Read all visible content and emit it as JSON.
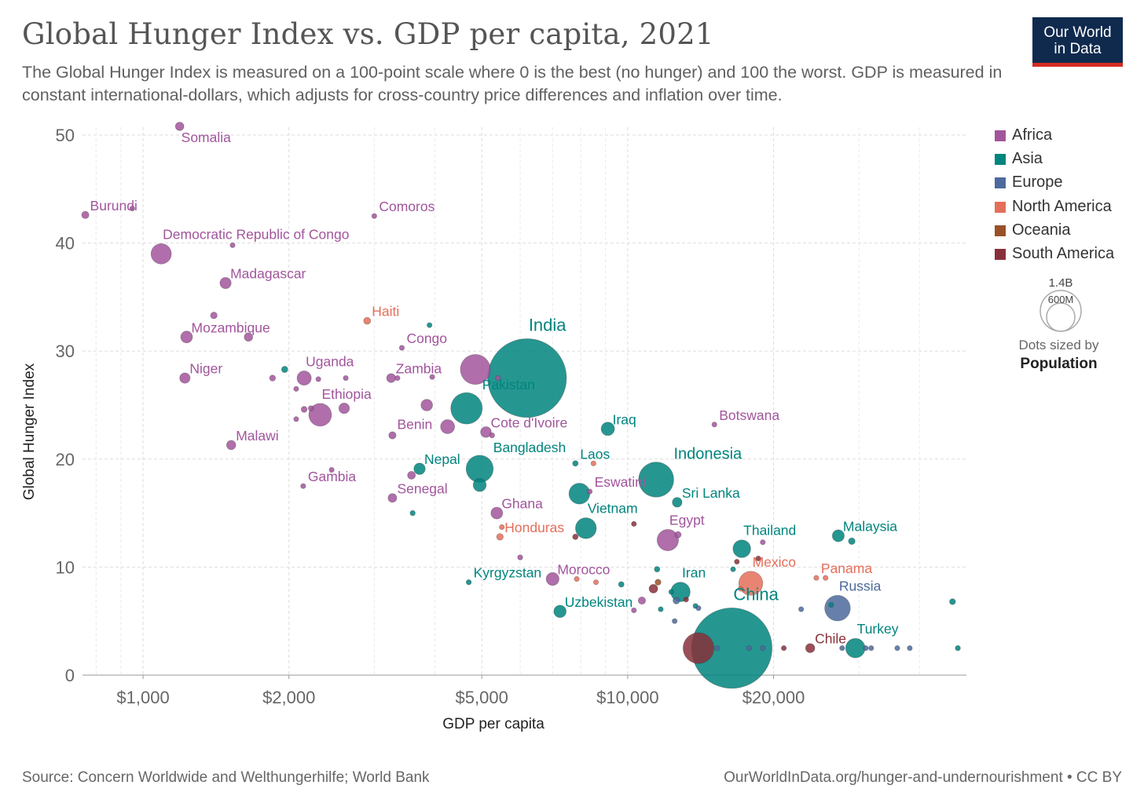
{
  "header": {
    "title": "Global Hunger Index vs. GDP per capita, 2021",
    "subtitle": "The Global Hunger Index is measured on a 100-point scale where 0 is the best (no hunger) and 100 the worst. GDP is measured in constant international-dollars, which adjusts for cross-country price differences and inflation over time.",
    "logo_line1": "Our World",
    "logo_line2": "in Data"
  },
  "footer": {
    "source": "Source: Concern Worldwide and Welthungerhilfe; World Bank",
    "url": "OurWorldInData.org/hunger-and-undernourishment • CC BY"
  },
  "size_legend": {
    "big_label": "1.4B",
    "small_label": "600M",
    "caption_line1": "Dots sized by",
    "caption_line2": "Population"
  },
  "colors": {
    "Africa": "#a2559c",
    "Asia": "#00847e",
    "Europe": "#4c6a9c",
    "North America": "#e56e5a",
    "Oceania": "#9a5129",
    "South America": "#883039"
  },
  "chart_data": {
    "type": "scatter",
    "xlabel": "GDP per capita",
    "ylabel": "Global Hunger Index",
    "x_scale": "log",
    "xlim": [
      750,
      50000
    ],
    "ylim": [
      0,
      52
    ],
    "grid": true,
    "legend_position": "right",
    "x_ticks": [
      {
        "value": 1000,
        "label": "$1,000"
      },
      {
        "value": 2000,
        "label": "$2,000"
      },
      {
        "value": 5000,
        "label": "$5,000"
      },
      {
        "value": 10000,
        "label": "$10,000"
      },
      {
        "value": 20000,
        "label": "$20,000"
      }
    ],
    "y_ticks": [
      {
        "value": 0,
        "label": "0"
      },
      {
        "value": 10,
        "label": "10"
      },
      {
        "value": 20,
        "label": "20"
      },
      {
        "value": 30,
        "label": "30"
      },
      {
        "value": 40,
        "label": "40"
      },
      {
        "value": 50,
        "label": "50"
      }
    ],
    "series": [
      {
        "name": "Africa",
        "points": [
          {
            "country": "Somalia",
            "label": "Somalia",
            "x": 1190,
            "y": 50.8,
            "pop": 16
          },
          {
            "country": "Burundi",
            "label": "Burundi",
            "x": 760,
            "y": 42.6,
            "pop": 12
          },
          {
            "country": "",
            "label": "",
            "x": 950,
            "y": 43.2,
            "pop": 3
          },
          {
            "country": "Comoros",
            "label": "Comoros",
            "x": 3000,
            "y": 42.5,
            "pop": 1
          },
          {
            "country": "Democratic Republic of Congo",
            "label": "Democratic Republic of Congo",
            "x": 1090,
            "y": 39.0,
            "pop": 92
          },
          {
            "country": "",
            "label": "",
            "x": 1530,
            "y": 39.8,
            "pop": 2
          },
          {
            "country": "Madagascar",
            "label": "Madagascar",
            "x": 1480,
            "y": 36.3,
            "pop": 28
          },
          {
            "country": "",
            "label": "",
            "x": 1400,
            "y": 33.3,
            "pop": 10
          },
          {
            "country": "Mozambique",
            "label": "Mozambique",
            "x": 1230,
            "y": 31.3,
            "pop": 31
          },
          {
            "country": "",
            "label": "",
            "x": 1650,
            "y": 31.3,
            "pop": 16
          },
          {
            "country": "Congo",
            "label": "Congo",
            "x": 3420,
            "y": 30.3,
            "pop": 5
          },
          {
            "country": "Niger",
            "label": "Niger",
            "x": 1220,
            "y": 27.5,
            "pop": 24
          },
          {
            "country": "",
            "label": "",
            "x": 1850,
            "y": 27.5,
            "pop": 8
          },
          {
            "country": "Uganda",
            "label": "Uganda",
            "x": 2150,
            "y": 27.5,
            "pop": 45
          },
          {
            "country": "",
            "label": "",
            "x": 2300,
            "y": 27.4,
            "pop": 5
          },
          {
            "country": "",
            "label": "",
            "x": 2620,
            "y": 27.5,
            "pop": 5
          },
          {
            "country": "Zambia",
            "label": "Zambia",
            "x": 3250,
            "y": 27.5,
            "pop": 18
          },
          {
            "country": "",
            "label": "",
            "x": 3350,
            "y": 27.5,
            "pop": 5
          },
          {
            "country": "",
            "label": "",
            "x": 3950,
            "y": 27.6,
            "pop": 4
          },
          {
            "country": "",
            "label": "",
            "x": 4850,
            "y": 28.3,
            "pop": 200
          },
          {
            "country": "",
            "label": "",
            "x": 5400,
            "y": 27.5,
            "pop": 3
          },
          {
            "country": "",
            "label": "",
            "x": 2070,
            "y": 26.5,
            "pop": 5
          },
          {
            "country": "Ethiopia",
            "label": "Ethiopia",
            "x": 2320,
            "y": 24.1,
            "pop": 115
          },
          {
            "country": "",
            "label": "",
            "x": 2150,
            "y": 24.6,
            "pop": 8
          },
          {
            "country": "",
            "label": "",
            "x": 2220,
            "y": 24.7,
            "pop": 6
          },
          {
            "country": "",
            "label": "",
            "x": 2600,
            "y": 24.7,
            "pop": 25
          },
          {
            "country": "",
            "label": "",
            "x": 2070,
            "y": 23.7,
            "pop": 5
          },
          {
            "country": "",
            "label": "",
            "x": 3850,
            "y": 25.0,
            "pop": 30
          },
          {
            "country": "Benin",
            "label": "Benin",
            "x": 3270,
            "y": 22.2,
            "pop": 12
          },
          {
            "country": "",
            "label": "",
            "x": 4250,
            "y": 23.0,
            "pop": 44
          },
          {
            "country": "Cote d'Ivoire",
            "label": "Cote d'Ivoire",
            "x": 5100,
            "y": 22.5,
            "pop": 26
          },
          {
            "country": "",
            "label": "",
            "x": 5250,
            "y": 22.2,
            "pop": 6
          },
          {
            "country": "Botswana",
            "label": "Botswana",
            "x": 15100,
            "y": 23.2,
            "pop": 2
          },
          {
            "country": "Malawi",
            "label": "Malawi",
            "x": 1520,
            "y": 21.3,
            "pop": 19
          },
          {
            "country": "Gambia",
            "label": "Gambia",
            "x": 2140,
            "y": 17.5,
            "pop": 2
          },
          {
            "country": "",
            "label": "",
            "x": 2450,
            "y": 19.0,
            "pop": 2
          },
          {
            "country": "",
            "label": "",
            "x": 3580,
            "y": 18.5,
            "pop": 14
          },
          {
            "country": "Senegal",
            "label": "Senegal",
            "x": 3270,
            "y": 16.4,
            "pop": 17
          },
          {
            "country": "Eswatini",
            "label": "Eswatini",
            "x": 8350,
            "y": 17.0,
            "pop": 1
          },
          {
            "country": "Ghana",
            "label": "Ghana",
            "x": 5370,
            "y": 15.0,
            "pop": 31
          },
          {
            "country": "",
            "label": "",
            "x": 6000,
            "y": 10.9,
            "pop": 6
          },
          {
            "country": "Egypt",
            "label": "Egypt",
            "x": 12100,
            "y": 12.5,
            "pop": 102
          },
          {
            "country": "",
            "label": "",
            "x": 12700,
            "y": 13.0,
            "pop": 9
          },
          {
            "country": "",
            "label": "",
            "x": 19000,
            "y": 12.3,
            "pop": 5
          },
          {
            "country": "Morocco",
            "label": "Morocco",
            "x": 7000,
            "y": 8.9,
            "pop": 37
          },
          {
            "country": "",
            "label": "",
            "x": 10700,
            "y": 6.9,
            "pop": 12
          },
          {
            "country": "",
            "label": "",
            "x": 10300,
            "y": 6.0,
            "pop": 5
          }
        ]
      },
      {
        "name": "Asia",
        "points": [
          {
            "country": "",
            "label": "",
            "x": 3900,
            "y": 32.4,
            "pop": 4
          },
          {
            "country": "India",
            "label": "India",
            "x": 6200,
            "y": 27.5,
            "pop": 1380
          },
          {
            "country": "Pakistan",
            "label": "Pakistan",
            "x": 4650,
            "y": 24.7,
            "pop": 220
          },
          {
            "country": "",
            "label": "",
            "x": 1960,
            "y": 28.3,
            "pop": 9
          },
          {
            "country": "Iraq",
            "label": "Iraq",
            "x": 9100,
            "y": 22.8,
            "pop": 40
          },
          {
            "country": "Nepal",
            "label": "Nepal",
            "x": 3720,
            "y": 19.1,
            "pop": 29
          },
          {
            "country": "Bangladesh",
            "label": "Bangladesh",
            "x": 4950,
            "y": 19.1,
            "pop": 164
          },
          {
            "country": "",
            "label": "",
            "x": 4950,
            "y": 17.6,
            "pop": 38
          },
          {
            "country": "",
            "label": "",
            "x": 3600,
            "y": 15.0,
            "pop": 6
          },
          {
            "country": "Laos",
            "label": "Laos",
            "x": 7800,
            "y": 19.6,
            "pop": 7
          },
          {
            "country": "Indonesia",
            "label": "Indonesia",
            "x": 11450,
            "y": 18.1,
            "pop": 273
          },
          {
            "country": "",
            "label": "",
            "x": 7950,
            "y": 16.8,
            "pop": 97
          },
          {
            "country": "Sri Lanka",
            "label": "Sri Lanka",
            "x": 12650,
            "y": 16.0,
            "pop": 21
          },
          {
            "country": "Vietnam",
            "label": "Vietnam",
            "x": 8200,
            "y": 13.6,
            "pop": 97
          },
          {
            "country": "Thailand",
            "label": "Thailand",
            "x": 17200,
            "y": 11.7,
            "pop": 70
          },
          {
            "country": "Malaysia",
            "label": "Malaysia",
            "x": 27200,
            "y": 12.9,
            "pop": 32
          },
          {
            "country": "",
            "label": "",
            "x": 29000,
            "y": 12.4,
            "pop": 10
          },
          {
            "country": "Kyrgyzstan",
            "label": "Kyrgyzstan",
            "x": 4700,
            "y": 8.6,
            "pop": 6
          },
          {
            "country": "Uzbekistan",
            "label": "Uzbekistan",
            "x": 7250,
            "y": 5.9,
            "pop": 34
          },
          {
            "country": "Iran",
            "label": "Iran",
            "x": 12850,
            "y": 7.7,
            "pop": 84
          },
          {
            "country": "",
            "label": "",
            "x": 11500,
            "y": 9.8,
            "pop": 7
          },
          {
            "country": "",
            "label": "",
            "x": 9700,
            "y": 8.4,
            "pop": 7
          },
          {
            "country": "",
            "label": "",
            "x": 13800,
            "y": 6.4,
            "pop": 4
          },
          {
            "country": "",
            "label": "",
            "x": 12300,
            "y": 7.7,
            "pop": 4
          },
          {
            "country": "",
            "label": "",
            "x": 16500,
            "y": 9.8,
            "pop": 4
          },
          {
            "country": "",
            "label": "",
            "x": 11700,
            "y": 6.1,
            "pop": 4
          },
          {
            "country": "China",
            "label": "China",
            "x": 16400,
            "y": 2.5,
            "pop": 1440
          },
          {
            "country": "",
            "label": "",
            "x": 26300,
            "y": 6.5,
            "pop": 5
          },
          {
            "country": "Turkey",
            "label": "Turkey",
            "x": 29500,
            "y": 2.5,
            "pop": 84
          },
          {
            "country": "",
            "label": "",
            "x": 46800,
            "y": 6.8,
            "pop": 8
          },
          {
            "country": "",
            "label": "",
            "x": 48000,
            "y": 2.5,
            "pop": 6
          }
        ]
      },
      {
        "name": "Europe",
        "points": [
          {
            "country": "Russia",
            "label": "Russia",
            "x": 27100,
            "y": 6.2,
            "pop": 146
          },
          {
            "country": "",
            "label": "",
            "x": 12600,
            "y": 6.9,
            "pop": 10
          },
          {
            "country": "",
            "label": "",
            "x": 14000,
            "y": 6.2,
            "pop": 4
          },
          {
            "country": "",
            "label": "",
            "x": 12500,
            "y": 5.0,
            "pop": 3
          },
          {
            "country": "",
            "label": "",
            "x": 22800,
            "y": 6.1,
            "pop": 3
          },
          {
            "country": "",
            "label": "",
            "x": 15300,
            "y": 2.5,
            "pop": 4
          },
          {
            "country": "",
            "label": "",
            "x": 17800,
            "y": 2.5,
            "pop": 3
          },
          {
            "country": "",
            "label": "",
            "x": 19000,
            "y": 2.5,
            "pop": 3
          },
          {
            "country": "",
            "label": "",
            "x": 27700,
            "y": 2.5,
            "pop": 3
          },
          {
            "country": "",
            "label": "",
            "x": 31000,
            "y": 2.5,
            "pop": 3
          },
          {
            "country": "",
            "label": "",
            "x": 31800,
            "y": 2.5,
            "pop": 3
          },
          {
            "country": "",
            "label": "",
            "x": 36000,
            "y": 2.5,
            "pop": 3
          },
          {
            "country": "",
            "label": "",
            "x": 38200,
            "y": 2.5,
            "pop": 3
          }
        ]
      },
      {
        "name": "North America",
        "points": [
          {
            "country": "Haiti",
            "label": "Haiti",
            "x": 2900,
            "y": 32.8,
            "pop": 11
          },
          {
            "country": "",
            "label": "",
            "x": 8500,
            "y": 19.6,
            "pop": 5
          },
          {
            "country": "Honduras",
            "label": "Honduras",
            "x": 5450,
            "y": 12.8,
            "pop": 10
          },
          {
            "country": "",
            "label": "",
            "x": 5500,
            "y": 13.7,
            "pop": 3
          },
          {
            "country": "",
            "label": "",
            "x": 7850,
            "y": 8.9,
            "pop": 5
          },
          {
            "country": "",
            "label": "",
            "x": 8600,
            "y": 8.6,
            "pop": 4
          },
          {
            "country": "Mexico",
            "label": "Mexico",
            "x": 17950,
            "y": 8.5,
            "pop": 128
          },
          {
            "country": "",
            "label": "",
            "x": 17100,
            "y": 8.0,
            "pop": 4
          },
          {
            "country": "Panama",
            "label": "Panama",
            "x": 24500,
            "y": 9.0,
            "pop": 4
          },
          {
            "country": "",
            "label": "",
            "x": 25600,
            "y": 9.0,
            "pop": 3
          }
        ]
      },
      {
        "name": "Oceania",
        "points": [
          {
            "country": "",
            "label": "",
            "x": 11550,
            "y": 8.6,
            "pop": 8
          }
        ]
      },
      {
        "name": "South America",
        "points": [
          {
            "country": "",
            "label": "",
            "x": 7800,
            "y": 12.8,
            "pop": 7
          },
          {
            "country": "",
            "label": "",
            "x": 10300,
            "y": 14.0,
            "pop": 4
          },
          {
            "country": "",
            "label": "",
            "x": 11300,
            "y": 8.0,
            "pop": 17
          },
          {
            "country": "",
            "label": "",
            "x": 16800,
            "y": 10.5,
            "pop": 5
          },
          {
            "country": "",
            "label": "",
            "x": 18600,
            "y": 10.8,
            "pop": 5
          },
          {
            "country": "",
            "label": "",
            "x": 14000,
            "y": 2.5,
            "pop": 212
          },
          {
            "country": "",
            "label": "",
            "x": 21000,
            "y": 2.5,
            "pop": 5
          },
          {
            "country": "Chile",
            "label": "Chile",
            "x": 23800,
            "y": 2.5,
            "pop": 19
          },
          {
            "country": "",
            "label": "",
            "x": 13200,
            "y": 7.0,
            "pop": 4
          }
        ]
      }
    ]
  }
}
